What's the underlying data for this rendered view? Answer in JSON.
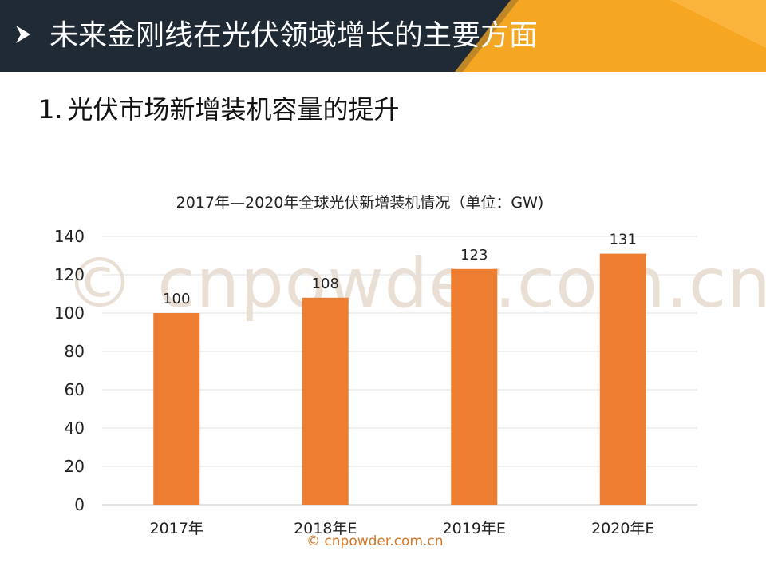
{
  "header": {
    "title": "未来金刚线在光伏领域增长的主要方面",
    "arrow_icon": "arrow-right-icon",
    "background_color": "#1f2a35",
    "accent_color": "#f5a623"
  },
  "section": {
    "number": "1.",
    "title": "光伏市场新增装机容量的提升"
  },
  "watermark": {
    "large": "© cnpowder.com.cn",
    "small": "© cnpowder.com.cn"
  },
  "chart_data": {
    "type": "bar",
    "title": "2017年—2020年全球光伏新增装机情况（单位：GW)",
    "categories": [
      "2017年",
      "2018年E",
      "2019年E",
      "2020年E"
    ],
    "values": [
      100,
      108,
      123,
      131
    ],
    "data_labels": [
      "100",
      "108",
      "123",
      "131"
    ],
    "ylim": [
      0,
      140
    ],
    "yticks": [
      "0",
      "20",
      "40",
      "60",
      "80",
      "100",
      "120",
      "140"
    ],
    "xlabel": "",
    "ylabel": "",
    "grid": true,
    "bar_color": "#ed7d31"
  }
}
